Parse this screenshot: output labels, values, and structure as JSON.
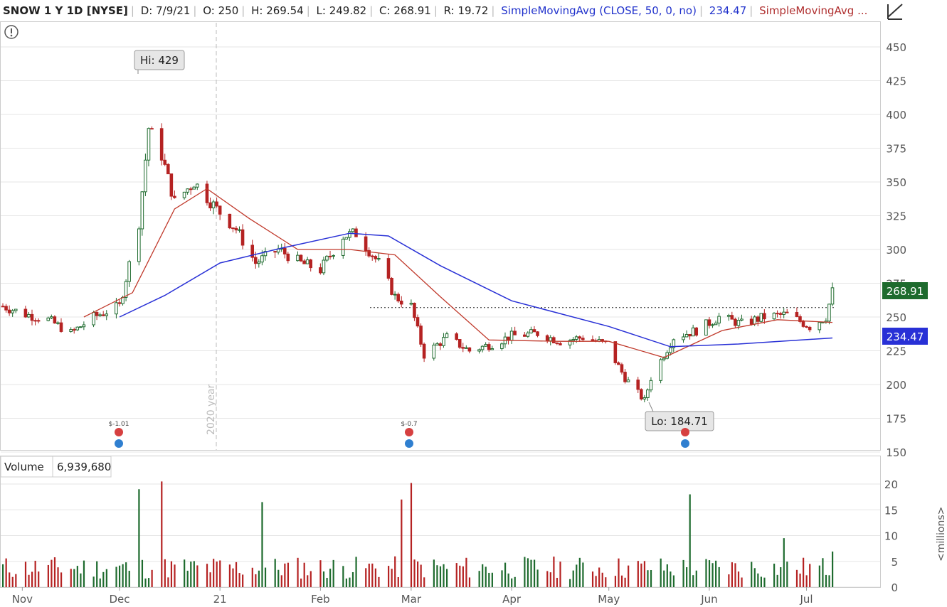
{
  "header": {
    "symbol": "SNOW 1 Y 1D [NYSE]",
    "date": "D: 7/9/21",
    "open": "O: 250",
    "high": "H: 269.54",
    "low": "L: 249.82",
    "close": "C: 268.91",
    "range": "R: 19.72",
    "sma50_label": "SimpleMovingAvg (CLOSE, 50, 0, no)",
    "sma50_value": "234.47",
    "sma20_label": "SimpleMovingAvg ..."
  },
  "colors": {
    "up": "#1e6b2e",
    "down": "#b52222",
    "sma50": "#2830d6",
    "sma20": "#c0392b",
    "grid": "#e6e6e6",
    "axis": "#555555"
  },
  "icons": {
    "alert": "exclamation-circle-icon",
    "drawing": "drawing-tool-icon",
    "earnings": "earnings-icon",
    "dividend": "dividend-icon"
  },
  "chart_data": [
    {
      "type": "candlestick",
      "title": "SNOW 1 Y 1D [NYSE]",
      "y_ticks": [
        "150",
        "175",
        "200",
        "225",
        "250",
        "275",
        "300",
        "325",
        "350",
        "375",
        "400",
        "425",
        "450"
      ],
      "ylim": [
        150,
        460
      ],
      "x_ticks": [
        "Nov",
        "Dec",
        "21",
        "Feb",
        "Mar",
        "Apr",
        "May",
        "Jun",
        "Jul"
      ],
      "last_price": "268.91",
      "sma50_last": "234.47",
      "high_label": "Hi: 429",
      "low_label": "Lo: 184.71",
      "year_marker": "2020 year",
      "earnings_labels": [
        "$-1.01",
        "$-0.7"
      ],
      "resistance_level": 257,
      "close_path": [
        [
          "2020-10-26",
          258
        ],
        [
          "2020-11-02",
          252
        ],
        [
          "2020-11-09",
          248
        ],
        [
          "2020-11-16",
          238
        ],
        [
          "2020-11-23",
          250
        ],
        [
          "2020-12-01",
          258
        ],
        [
          "2020-12-07",
          320
        ],
        [
          "2020-12-10",
          390
        ],
        [
          "2020-12-14",
          370
        ],
        [
          "2020-12-18",
          335
        ],
        [
          "2020-12-24",
          350
        ],
        [
          "2020-12-31",
          330
        ],
        [
          "2021-01-06",
          315
        ],
        [
          "2021-01-12",
          290
        ],
        [
          "2021-01-19",
          300
        ],
        [
          "2021-01-26",
          290
        ],
        [
          "2021-02-01",
          285
        ],
        [
          "2021-02-08",
          310
        ],
        [
          "2021-02-12",
          312
        ],
        [
          "2021-02-19",
          290
        ],
        [
          "2021-02-24",
          265
        ],
        [
          "2021-03-01",
          258
        ],
        [
          "2021-03-05",
          222
        ],
        [
          "2021-03-12",
          235
        ],
        [
          "2021-03-19",
          225
        ],
        [
          "2021-03-26",
          230
        ],
        [
          "2021-04-01",
          236
        ],
        [
          "2021-04-09",
          238
        ],
        [
          "2021-04-16",
          232
        ],
        [
          "2021-04-23",
          235
        ],
        [
          "2021-04-30",
          230
        ],
        [
          "2021-05-06",
          205
        ],
        [
          "2021-05-12",
          188
        ],
        [
          "2021-05-14",
          205
        ],
        [
          "2021-05-21",
          235
        ],
        [
          "2021-05-28",
          240
        ],
        [
          "2021-06-04",
          250
        ],
        [
          "2021-06-11",
          245
        ],
        [
          "2021-06-18",
          250
        ],
        [
          "2021-06-25",
          252
        ],
        [
          "2021-07-02",
          243
        ],
        [
          "2021-07-07",
          250
        ],
        [
          "2021-07-09",
          268.91
        ]
      ],
      "sma50_path": [
        [
          "2020-12-01",
          250
        ],
        [
          "2020-12-15",
          266
        ],
        [
          "2021-01-01",
          290
        ],
        [
          "2021-01-20",
          301
        ],
        [
          "2021-02-10",
          312
        ],
        [
          "2021-02-22",
          310
        ],
        [
          "2021-03-10",
          288
        ],
        [
          "2021-04-01",
          262
        ],
        [
          "2021-05-01",
          243
        ],
        [
          "2021-05-20",
          228
        ],
        [
          "2021-06-10",
          230
        ],
        [
          "2021-07-09",
          234.47
        ]
      ],
      "sma20_path": [
        [
          "2020-11-20",
          250
        ],
        [
          "2020-12-05",
          268
        ],
        [
          "2020-12-18",
          330
        ],
        [
          "2020-12-28",
          345
        ],
        [
          "2021-01-10",
          323
        ],
        [
          "2021-01-25",
          300
        ],
        [
          "2021-02-10",
          300
        ],
        [
          "2021-02-24",
          296
        ],
        [
          "2021-03-10",
          265
        ],
        [
          "2021-03-25",
          233
        ],
        [
          "2021-04-15",
          232
        ],
        [
          "2021-05-01",
          232
        ],
        [
          "2021-05-18",
          220
        ],
        [
          "2021-06-05",
          240
        ],
        [
          "2021-06-22",
          248
        ],
        [
          "2021-07-09",
          246
        ]
      ]
    },
    {
      "type": "bar",
      "title": "Volume",
      "last_volume": "6,939,680",
      "y_ticks": [
        "0",
        "5",
        "10",
        "15",
        "20"
      ],
      "unit_label": "<millions>",
      "ylim": [
        0,
        21
      ],
      "peaks": [
        {
          "date": "2020-12-07",
          "value": 19.0
        },
        {
          "date": "2020-12-14",
          "value": 20.5
        },
        {
          "date": "2021-01-14",
          "value": 16.5
        },
        {
          "date": "2021-02-26",
          "value": 17.0
        },
        {
          "date": "2021-03-01",
          "value": 20.2
        },
        {
          "date": "2021-05-26",
          "value": 18.0
        },
        {
          "date": "2021-06-24",
          "value": 9.5
        },
        {
          "date": "2021-07-09",
          "value": 6.9
        }
      ]
    }
  ]
}
